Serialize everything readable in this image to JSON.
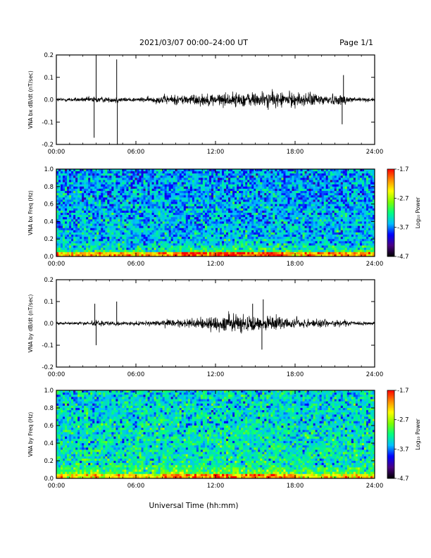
{
  "header": {
    "title": "2021/03/07  00:00–24:00 UT",
    "page": "Page 1/1"
  },
  "xlabel": "Universal Time (hh:mm)",
  "colorbar_label": "Log₁₀ Power",
  "colors": {
    "colormap": [
      "#000000",
      "#4b0082",
      "#0000ff",
      "#00bfff",
      "#00ff7f",
      "#7fff00",
      "#ffff00",
      "#ff8c00",
      "#ff0000"
    ]
  },
  "chart_data": [
    {
      "type": "line",
      "ylabel": "VNA bx dB/dt (nT/sec)",
      "x_unit": "hours UT",
      "xlim": [
        0,
        24
      ],
      "ylim": [
        -0.2,
        0.2
      ],
      "xticks": [
        "00:00",
        "06:00",
        "12:00",
        "18:00",
        "24:00"
      ],
      "yticks": [
        "0.2",
        "0.1",
        "0.0",
        "-0.1",
        "-0.2"
      ],
      "envelope": {
        "hours": [
          0,
          2,
          3,
          4,
          4.5,
          5,
          6,
          7,
          8,
          10,
          12,
          14,
          16,
          18,
          20,
          21,
          22,
          23,
          24
        ],
        "amplitude": [
          0.01,
          0.012,
          0.02,
          0.012,
          0.02,
          0.012,
          0.012,
          0.015,
          0.025,
          0.03,
          0.035,
          0.04,
          0.045,
          0.04,
          0.035,
          0.03,
          0.025,
          0.012,
          0.01
        ]
      },
      "spikes": [
        {
          "hour": 2.85,
          "value": -0.17
        },
        {
          "hour": 3.0,
          "value": 0.2
        },
        {
          "hour": 4.55,
          "value": 0.18
        },
        {
          "hour": 4.6,
          "value": -0.2
        },
        {
          "hour": 21.65,
          "value": 0.11
        },
        {
          "hour": 21.55,
          "value": -0.11
        }
      ]
    },
    {
      "type": "heatmap",
      "ylabel": "VNA bx Freq (Hz)",
      "x_unit": "hours UT",
      "xlim": [
        0,
        24
      ],
      "ylim": [
        0,
        1
      ],
      "xticks": [
        "00:00",
        "06:00",
        "12:00",
        "18:00",
        "24:00"
      ],
      "yticks": [
        "1.0",
        "0.8",
        "0.6",
        "0.4",
        "0.2",
        "0.0"
      ],
      "colorbar_ticks": [
        "-1.7",
        "-2.7",
        "-3.7",
        "-4.7"
      ],
      "colorbar_range": [
        -4.7,
        -1.7
      ],
      "background_log_power": -3.5,
      "low_freq_band": {
        "freq_max": 0.05,
        "log_power": -2.2
      },
      "enhanced_hours": [
        [
          9,
          17
        ]
      ]
    },
    {
      "type": "line",
      "ylabel": "VNA by dB/dt (nT/sec)",
      "x_unit": "hours UT",
      "xlim": [
        0,
        24
      ],
      "ylim": [
        -0.2,
        0.2
      ],
      "xticks": [
        "00:00",
        "06:00",
        "12:00",
        "18:00",
        "24:00"
      ],
      "yticks": [
        "0.2",
        "0.1",
        "0.0",
        "-0.1",
        "-0.2"
      ],
      "envelope": {
        "hours": [
          0,
          2,
          3,
          4,
          4.5,
          5,
          6,
          7,
          8,
          10,
          11,
          12,
          14,
          15,
          16,
          18,
          20,
          21,
          22,
          23,
          24
        ],
        "amplitude": [
          0.008,
          0.01,
          0.018,
          0.01,
          0.015,
          0.01,
          0.01,
          0.012,
          0.02,
          0.025,
          0.035,
          0.045,
          0.05,
          0.055,
          0.04,
          0.03,
          0.025,
          0.02,
          0.015,
          0.01,
          0.008
        ]
      },
      "spikes": [
        {
          "hour": 2.9,
          "value": 0.09
        },
        {
          "hour": 3.0,
          "value": -0.1
        },
        {
          "hour": 4.55,
          "value": 0.1
        },
        {
          "hour": 15.5,
          "value": -0.12
        },
        {
          "hour": 15.6,
          "value": 0.11
        },
        {
          "hour": 14.8,
          "value": 0.09
        }
      ]
    },
    {
      "type": "heatmap",
      "ylabel": "VNA by Freq (Hz)",
      "x_unit": "hours UT",
      "xlim": [
        0,
        24
      ],
      "ylim": [
        0,
        1
      ],
      "xticks": [
        "00:00",
        "06:00",
        "12:00",
        "18:00",
        "24:00"
      ],
      "yticks": [
        "1.0",
        "0.8",
        "0.6",
        "0.4",
        "0.2",
        "0.0"
      ],
      "colorbar_ticks": [
        "-1.7",
        "-2.7",
        "-3.7",
        "-4.7"
      ],
      "colorbar_range": [
        -4.7,
        -1.7
      ],
      "background_log_power": -3.3,
      "low_freq_band": {
        "freq_max": 0.06,
        "log_power": -2.4
      },
      "enhanced_hours": [
        [
          8,
          18
        ]
      ]
    }
  ]
}
